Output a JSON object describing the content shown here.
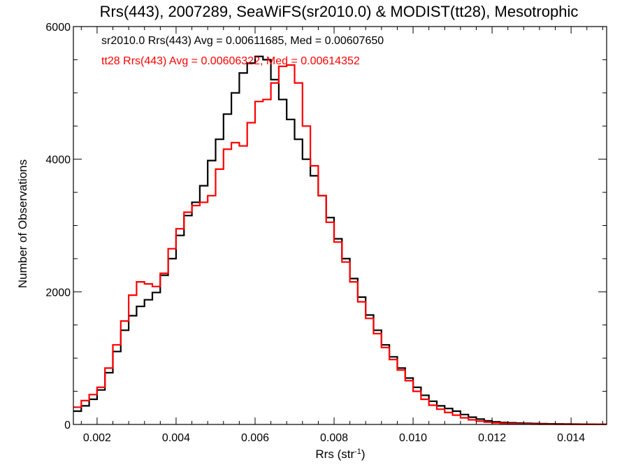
{
  "chart_data": {
    "type": "line",
    "title": "Rrs(443), 2007289, SeaWiFS(sr2010.0) & MODIST(tt28), Mesotrophic",
    "xlabel": "Rrs (str",
    "xlabel_sup": "-1",
    "xlabel_end": ")",
    "ylabel": "Number of Observations",
    "xlim": [
      0.0014,
      0.0149
    ],
    "ylim": [
      0,
      6000
    ],
    "x_ticks": [
      0.002,
      0.004,
      0.006,
      0.008,
      0.01,
      0.012,
      0.014
    ],
    "x_tick_labels": [
      "0.002",
      "0.004",
      "0.006",
      "0.008",
      "0.010",
      "0.012",
      "0.014"
    ],
    "y_ticks": [
      0,
      2000,
      4000,
      6000
    ],
    "y_tick_labels": [
      "0",
      "2000",
      "4000",
      "6000"
    ],
    "grid": false,
    "annotations": [
      {
        "text": "sr2010.0 Rrs(443) Avg = 0.00611685, Med = 0.00607650",
        "color": "#000000"
      },
      {
        "text": "tt28 Rrs(443) Avg = 0.00606322, Med = 0.00614352",
        "color": "#ff0000"
      }
    ],
    "series": [
      {
        "color": "#000000",
        "x": [
          0.0014,
          0.0016,
          0.0018,
          0.002,
          0.0022,
          0.0024,
          0.0026,
          0.0028,
          0.003,
          0.0032,
          0.0034,
          0.0036,
          0.0038,
          0.004,
          0.0042,
          0.0044,
          0.0046,
          0.0048,
          0.005,
          0.0052,
          0.0054,
          0.0056,
          0.0058,
          0.006,
          0.0062,
          0.0064,
          0.0066,
          0.0068,
          0.007,
          0.0072,
          0.0074,
          0.0076,
          0.0078,
          0.008,
          0.0082,
          0.0084,
          0.0086,
          0.0088,
          0.009,
          0.0092,
          0.0094,
          0.0096,
          0.0098,
          0.01,
          0.0102,
          0.0104,
          0.0106,
          0.0108,
          0.011,
          0.0112,
          0.0114,
          0.0116,
          0.0118,
          0.012,
          0.0122,
          0.0124,
          0.0126,
          0.0128,
          0.013,
          0.0132,
          0.0134,
          0.0136,
          0.0138,
          0.014,
          0.0142,
          0.0144,
          0.0146,
          0.0148
        ],
        "values": [
          200,
          280,
          380,
          520,
          780,
          1100,
          1420,
          1640,
          1780,
          1880,
          1990,
          2250,
          2500,
          2850,
          3150,
          3350,
          3600,
          3980,
          4300,
          4680,
          5000,
          5300,
          5450,
          5550,
          5500,
          5200,
          4900,
          4600,
          4300,
          4000,
          3750,
          3450,
          3120,
          2800,
          2500,
          2200,
          1920,
          1650,
          1420,
          1200,
          1020,
          850,
          700,
          560,
          440,
          350,
          280,
          240,
          200,
          150,
          110,
          80,
          55,
          40,
          30,
          25,
          20,
          18,
          15,
          12,
          10,
          8,
          6,
          5,
          4,
          3,
          2,
          2
        ]
      },
      {
        "color": "#ff0000",
        "x": [
          0.0014,
          0.0016,
          0.0018,
          0.002,
          0.0022,
          0.0024,
          0.0026,
          0.0028,
          0.003,
          0.0032,
          0.0034,
          0.0036,
          0.0038,
          0.004,
          0.0042,
          0.0044,
          0.0046,
          0.0048,
          0.005,
          0.0052,
          0.0054,
          0.0056,
          0.0058,
          0.006,
          0.0062,
          0.0064,
          0.0066,
          0.0068,
          0.007,
          0.0072,
          0.0074,
          0.0076,
          0.0078,
          0.008,
          0.0082,
          0.0084,
          0.0086,
          0.0088,
          0.009,
          0.0092,
          0.0094,
          0.0096,
          0.0098,
          0.01,
          0.0102,
          0.0104,
          0.0106,
          0.0108,
          0.011,
          0.0112,
          0.0114,
          0.0116,
          0.0118,
          0.012,
          0.0122,
          0.0124,
          0.0126,
          0.0128,
          0.013,
          0.0132,
          0.0134,
          0.0136,
          0.0138,
          0.014,
          0.0142,
          0.0144,
          0.0146,
          0.0148
        ],
        "values": [
          260,
          360,
          450,
          560,
          850,
          1200,
          1560,
          1950,
          2150,
          2120,
          2080,
          2280,
          2650,
          2950,
          3200,
          3300,
          3350,
          3450,
          3850,
          4150,
          4250,
          4200,
          4550,
          4870,
          4900,
          5150,
          5400,
          5420,
          5150,
          4500,
          3900,
          3450,
          3050,
          2750,
          2450,
          2150,
          1850,
          1600,
          1370,
          1160,
          980,
          820,
          660,
          500,
          380,
          290,
          230,
          180,
          140,
          100,
          70,
          50,
          35,
          25,
          18,
          12,
          8,
          6,
          5,
          4,
          3,
          2,
          2,
          1,
          1,
          1,
          1,
          1
        ]
      }
    ]
  }
}
